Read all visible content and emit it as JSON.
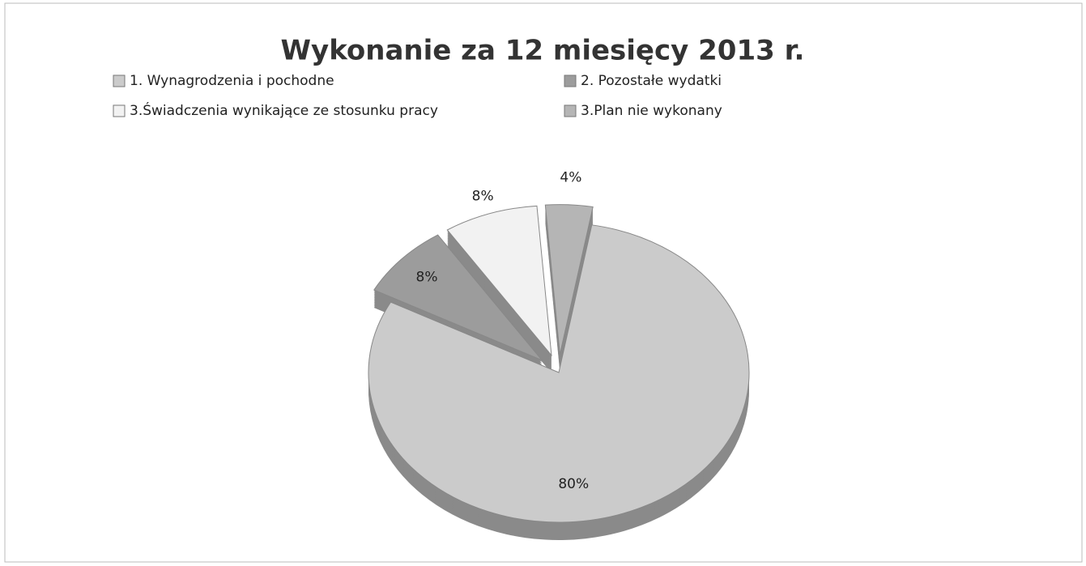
{
  "chart_data": {
    "type": "pie",
    "title": "Wykonanie za 12 miesięcy 2013 r.",
    "categories": [
      "1. Wynagrodzenia i pochodne",
      "2. Pozostałe wydatki",
      "3.Świadczenia wynikające ze stosunku pracy",
      "3.Plan nie wykonany"
    ],
    "values": [
      80,
      8,
      8,
      4
    ],
    "value_labels": [
      "80%",
      "8%",
      "8%",
      "4%"
    ],
    "colors": [
      "#cbcbcb",
      "#9c9c9c",
      "#f2f2f2",
      "#b5b5b5"
    ],
    "legend": "top"
  }
}
